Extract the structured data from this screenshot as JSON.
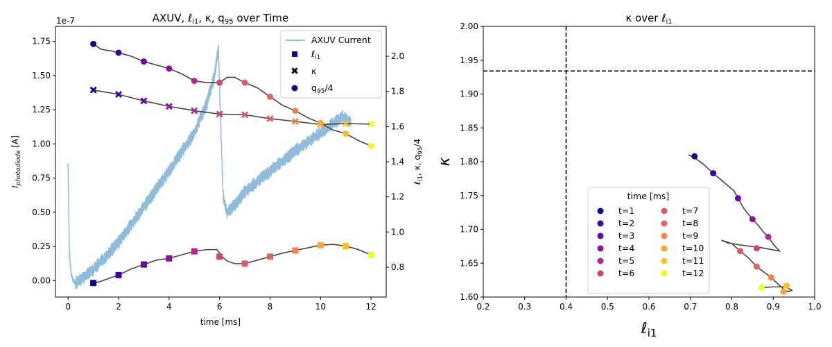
{
  "chart_data": [
    {
      "type": "line",
      "title": "AXUV, ℓ_i1, κ, q_95 over Time",
      "xlabel": "time [ms]",
      "ylabel_left": "I_photodiode [A]",
      "ylabel_right": "ℓ_i1, κ, q_95/4",
      "left_axis_offset_text": "1e-7",
      "xlim": [
        -0.5,
        12.6
      ],
      "ylim_left": [
        -0.12,
        1.86
      ],
      "ylim_right": [
        0.63,
        2.17
      ],
      "x_ticks": [
        0,
        2,
        4,
        6,
        8,
        10,
        12
      ],
      "left_ticks": [
        0.0,
        0.25,
        0.5,
        0.75,
        1.0,
        1.25,
        1.5,
        1.75
      ],
      "left_tick_labels": [
        "0.00",
        "0.25",
        "0.50",
        "0.75",
        "1.00",
        "1.25",
        "1.50",
        "1.75"
      ],
      "right_ticks": [
        0.8,
        1.0,
        1.2,
        1.4,
        1.6,
        1.8,
        2.0
      ],
      "right_tick_labels": [
        "0.8",
        "1.0",
        "1.2",
        "1.4",
        "1.6",
        "1.8",
        "2.0"
      ],
      "legend_position": "top-right",
      "legend": [
        {
          "label": "AXUV Current",
          "marker": "line"
        },
        {
          "label": "ℓ_i1",
          "marker": "square"
        },
        {
          "label": "κ",
          "marker": "x"
        },
        {
          "label": "q_95/4",
          "marker": "circle"
        }
      ],
      "axuv_envelope": {
        "x": [
          0.0,
          0.05,
          0.12,
          0.2,
          0.3,
          0.6,
          1.0,
          2.0,
          3.0,
          4.0,
          5.0,
          5.5,
          5.8,
          5.95,
          6.05,
          6.15,
          6.3,
          6.6,
          7.0,
          8.0,
          9.0,
          10.0,
          10.5,
          10.9,
          11.2
        ],
        "values": [
          0.85,
          0.2,
          0.05,
          0.0,
          -0.02,
          0.02,
          0.08,
          0.28,
          0.54,
          0.8,
          1.08,
          1.3,
          1.5,
          1.7,
          1.1,
          0.6,
          0.5,
          0.55,
          0.65,
          0.8,
          0.95,
          1.08,
          1.15,
          1.2,
          1.15
        ],
        "noise_amplitude": 0.05
      },
      "markers": {
        "t": [
          1,
          2,
          3,
          4,
          5,
          6,
          7,
          8,
          9,
          10,
          11,
          12
        ],
        "li1": [
          0.71,
          0.755,
          0.815,
          0.85,
          0.89,
          0.86,
          0.82,
          0.86,
          0.895,
          0.925,
          0.92,
          0.87
        ],
        "kappa": [
          1.808,
          1.783,
          1.746,
          1.715,
          1.69,
          1.671,
          1.667,
          1.645,
          1.629,
          1.612,
          1.617,
          1.614
        ],
        "q95_over_4": [
          2.07,
          2.02,
          1.97,
          1.93,
          1.86,
          1.85,
          1.85,
          1.77,
          1.69,
          1.62,
          1.56,
          1.49
        ]
      },
      "curves": {
        "li1": {
          "x": [
            1.0,
            1.2,
            1.5,
            2.0,
            2.5,
            3.0,
            3.5,
            4.0,
            4.5,
            5.0,
            5.5,
            5.9,
            6.1,
            6.3,
            6.6,
            7.0,
            7.5,
            8.0,
            8.5,
            9.0,
            9.5,
            10.0,
            10.5,
            11.0,
            11.5,
            12.0
          ],
          "values": [
            0.71,
            0.715,
            0.73,
            0.755,
            0.79,
            0.815,
            0.84,
            0.85,
            0.87,
            0.89,
            0.9,
            0.9,
            0.86,
            0.835,
            0.82,
            0.82,
            0.84,
            0.86,
            0.88,
            0.895,
            0.91,
            0.925,
            0.93,
            0.92,
            0.9,
            0.87
          ]
        },
        "kappa": {
          "x": [
            1.0,
            2.0,
            3.0,
            4.0,
            5.0,
            6.0,
            7.0,
            8.0,
            9.0,
            10.0,
            11.0,
            12.0
          ],
          "values": [
            1.808,
            1.783,
            1.746,
            1.715,
            1.69,
            1.671,
            1.667,
            1.645,
            1.629,
            1.612,
            1.617,
            1.614
          ]
        },
        "q95_over_4": {
          "x": [
            1.0,
            1.3,
            1.7,
            2.0,
            2.5,
            3.0,
            3.5,
            4.0,
            4.5,
            5.0,
            5.5,
            6.0,
            6.3,
            6.6,
            7.0,
            7.5,
            8.0,
            8.5,
            9.0,
            9.5,
            10.0,
            10.5,
            11.0,
            11.5,
            12.0
          ],
          "values": [
            2.07,
            2.04,
            2.03,
            2.02,
            2.0,
            1.97,
            1.95,
            1.93,
            1.9,
            1.86,
            1.85,
            1.85,
            1.88,
            1.88,
            1.85,
            1.82,
            1.77,
            1.72,
            1.69,
            1.65,
            1.62,
            1.58,
            1.56,
            1.52,
            1.49
          ]
        }
      }
    },
    {
      "type": "scatter",
      "title": "κ over ℓ_i1",
      "xlabel": "ℓ_i1",
      "ylabel": "κ",
      "xlim": [
        0.2,
        1.0
      ],
      "ylim": [
        1.6,
        2.0
      ],
      "x_ticks": [
        0.2,
        0.3,
        0.4,
        0.5,
        0.6,
        0.7,
        0.8,
        0.9,
        1.0
      ],
      "x_tick_labels": [
        "0.2",
        "0.3",
        "0.4",
        "0.5",
        "0.6",
        "0.7",
        "0.8",
        "0.9",
        "1.0"
      ],
      "y_ticks": [
        1.6,
        1.65,
        1.7,
        1.75,
        1.8,
        1.85,
        1.9,
        1.95,
        2.0
      ],
      "y_tick_labels": [
        "1.60",
        "1.65",
        "1.70",
        "1.75",
        "1.80",
        "1.85",
        "1.90",
        "1.95",
        "2.00"
      ],
      "vline_x": 0.4,
      "hline_y": 1.934,
      "legend_title": "time [ms]",
      "legend_position": "bottom-center",
      "points": {
        "labels": [
          "t=1",
          "t=2",
          "t=3",
          "t=4",
          "t=5",
          "t=6",
          "t=7",
          "t=8",
          "t=9",
          "t=10",
          "t=11",
          "t=12"
        ],
        "x": [
          0.71,
          0.755,
          0.815,
          0.85,
          0.888,
          0.86,
          0.82,
          0.86,
          0.895,
          0.925,
          0.932,
          0.872
        ],
        "y": [
          1.808,
          1.783,
          1.746,
          1.715,
          1.689,
          1.672,
          1.668,
          1.645,
          1.629,
          1.608,
          1.617,
          1.614
        ]
      },
      "trajectory": {
        "x": [
          0.695,
          0.71,
          0.73,
          0.755,
          0.78,
          0.805,
          0.815,
          0.83,
          0.85,
          0.865,
          0.875,
          0.888,
          0.9,
          0.915,
          0.87,
          0.82,
          0.79,
          0.775,
          0.8,
          0.82,
          0.84,
          0.86,
          0.875,
          0.895,
          0.91,
          0.925,
          0.935,
          0.945,
          0.93,
          0.9,
          0.872,
          0.87
        ],
        "y": [
          1.81,
          1.806,
          1.797,
          1.783,
          1.77,
          1.757,
          1.746,
          1.73,
          1.715,
          1.705,
          1.697,
          1.689,
          1.678,
          1.668,
          1.673,
          1.677,
          1.68,
          1.684,
          1.679,
          1.668,
          1.658,
          1.645,
          1.638,
          1.629,
          1.62,
          1.612,
          1.608,
          1.61,
          1.615,
          1.615,
          1.614,
          1.613
        ]
      }
    }
  ],
  "palette": {
    "axuv": "#8fbcdc",
    "curve": "#444444",
    "times": [
      "#0d0887",
      "#3b049a",
      "#6a00a8",
      "#8f0da4",
      "#b12a90",
      "#cc4778",
      "#db5c68",
      "#e16462",
      "#f1834b",
      "#fca636",
      "#fcbe2a",
      "#f0f921"
    ],
    "ref_lines": "#000000"
  }
}
